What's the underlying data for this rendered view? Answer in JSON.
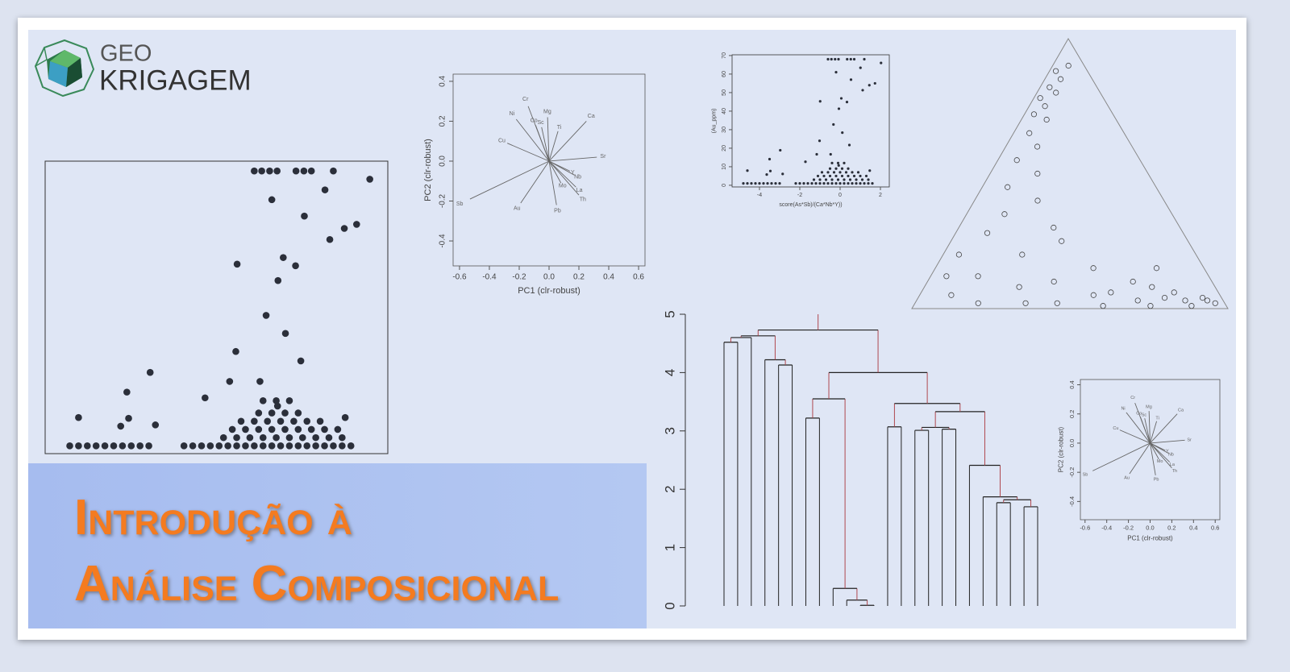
{
  "logo": {
    "line1": "GEO",
    "line2": "KRIGAGEM"
  },
  "title": {
    "line1": "Introdução à",
    "line2": "Análise Composicional"
  },
  "chart_data": [
    {
      "type": "scatter",
      "xlabel": "score(As*Sb)/(Ca*Nb*Y))",
      "ylabel": "(Au_ppm)",
      "color": "#2b2f3a",
      "x": [
        -0.6,
        -0.43,
        -0.25,
        -0.08,
        0.35,
        0.53,
        0.7,
        1.2,
        2.03,
        1.01,
        -0.2,
        0.54,
        1.73,
        1.45,
        1.12,
        -0.99,
        0.06,
        0.34,
        -0.06,
        -0.33,
        -1.02,
        -2.97,
        -3.5,
        0.11,
        0.46,
        -1.16,
        -0.47,
        -1.72,
        1.47,
        -4.6,
        -3.46,
        -2.85,
        -3.64,
        -0.07,
        -4.8,
        -4.6,
        -4.4,
        -4.2,
        -4.0,
        -3.8,
        -3.6,
        -3.4,
        -3.2,
        -3.0,
        -2.2,
        -2.0,
        -1.8,
        -1.6,
        -1.4,
        -1.2,
        -1.0,
        -0.8,
        -0.6,
        -0.4,
        -0.2,
        0,
        0.2,
        0.4,
        0.6,
        0.8,
        1.0,
        1.2,
        1.4,
        1.6,
        -1.3,
        -1.0,
        -0.7,
        -0.4,
        -0.1,
        0.2,
        0.5,
        0.8,
        1.1,
        1.4,
        -1.1,
        -0.8,
        -0.5,
        -0.2,
        0.1,
        0.4,
        0.7,
        1.0,
        1.3,
        -0.9,
        -0.6,
        -0.3,
        0,
        0.3,
        0.6,
        0.9,
        -0.5,
        -0.2,
        0.1,
        0.4,
        -0.4,
        -0.1,
        0.2
      ],
      "values": [
        68,
        68,
        68,
        68,
        68,
        68,
        68,
        68,
        66,
        63.4,
        61,
        57,
        55,
        54,
        51.3,
        45.3,
        46.9,
        44.9,
        41.3,
        32.8,
        24,
        18.9,
        14.1,
        28.4,
        21.7,
        16.7,
        16.7,
        12.7,
        7.9,
        7.9,
        7.7,
        6.1,
        5.8,
        10.7,
        1,
        1,
        1,
        1,
        1,
        1,
        1,
        1,
        1,
        1,
        1,
        1,
        1,
        1,
        1,
        1,
        1,
        1,
        1,
        1,
        1,
        1,
        1,
        1,
        1,
        1,
        1,
        1,
        1,
        1,
        3,
        3,
        3,
        3,
        3,
        3,
        3,
        3,
        3,
        3,
        5,
        5,
        5,
        5,
        5,
        5,
        5,
        5,
        5,
        7,
        7,
        7,
        7,
        7,
        7,
        7,
        9,
        9,
        9,
        9,
        12,
        12,
        12
      ],
      "xlim": [
        -5.36,
        2.44
      ],
      "ylim": [
        -0.9,
        70.4
      ],
      "xticks": [
        -4,
        -2,
        0,
        2
      ],
      "yticks": [
        0,
        10,
        20,
        30,
        40,
        50,
        60,
        70
      ]
    },
    {
      "type": "biplot",
      "xlabel": "PC1 (clr-robust)",
      "ylabel": "PC2 (clr-robust)",
      "color": "#666666",
      "variables": [
        "Ni",
        "Cr",
        "Cu",
        "Co",
        "Sc",
        "Mg",
        "Ti",
        "Ca",
        "Sr",
        "Nb",
        "Y",
        "La",
        "Th",
        "Mo",
        "Pb",
        "Au",
        "Sb"
      ],
      "x": [
        -0.22,
        -0.14,
        -0.28,
        -0.09,
        -0.05,
        -0.01,
        0.06,
        0.25,
        0.32,
        0.17,
        0.14,
        0.18,
        0.2,
        0.08,
        0.05,
        -0.19,
        -0.53
      ],
      "values": [
        0.21,
        0.275,
        0.09,
        0.18,
        0.17,
        0.22,
        0.15,
        0.2,
        0.02,
        -0.07,
        -0.05,
        -0.13,
        -0.17,
        -0.11,
        -0.22,
        -0.21,
        -0.19
      ],
      "xlim": [
        -0.643,
        0.643
      ],
      "ylim": [
        -0.525,
        0.436
      ],
      "xticks": [
        -0.6,
        -0.4,
        -0.2,
        {
          "value": 0,
          "label": "0.0"
        },
        0.2,
        0.4,
        0.6
      ],
      "yticks": [
        -0.4,
        -0.2,
        {
          "value": 0,
          "label": "0.0"
        },
        0.2,
        0.4
      ]
    },
    {
      "type": "ternary",
      "color": "#444444",
      "a": [
        0.9,
        0.88,
        0.85,
        0.82,
        0.8,
        0.78,
        0.75,
        0.72,
        0.7,
        0.65,
        0.6,
        0.55,
        0.5,
        0.45,
        0.4,
        0.35,
        0.3,
        0.28,
        0.25,
        0.2,
        0.2,
        0.15,
        0.12,
        0.1,
        0.1,
        0.08,
        0.06,
        0.05,
        0.05,
        0.04,
        0.03,
        0.03,
        0.02,
        0.02,
        0.02,
        0.01,
        0.01,
        0.01,
        0.15,
        0.08,
        0.04,
        0.03,
        0.06,
        0.02,
        0.12
      ],
      "b": [
        0.05,
        0.1,
        0.1,
        0.15,
        0.14,
        0.2,
        0.2,
        0.25,
        0.22,
        0.3,
        0.3,
        0.39,
        0.35,
        0.47,
        0.4,
        0.53,
        0.4,
        0.62,
        0.4,
        0.75,
        0.55,
        0.35,
        0.73,
        0.5,
        0.25,
        0.62,
        0.14,
        0.85,
        0.4,
        0.06,
        0.27,
        0.12,
        0.78,
        0.53,
        0.03,
        0.24,
        0.11,
        0.39,
        0.15,
        0.2,
        0.18,
        0.05,
        0.34,
        0.63,
        0.83
      ],
      "c": [
        0.05,
        0.02,
        0.05,
        0.03,
        0.06,
        0.02,
        0.05,
        0.03,
        0.08,
        0.05,
        0.1,
        0.06,
        0.15,
        0.08,
        0.2,
        0.12,
        0.3,
        0.1,
        0.35,
        0.05,
        0.25,
        0.5,
        0.15,
        0.4,
        0.65,
        0.3,
        0.8,
        0.1,
        0.55,
        0.9,
        0.7,
        0.85,
        0.2,
        0.45,
        0.95,
        0.75,
        0.88,
        0.6,
        0.7,
        0.72,
        0.78,
        0.92,
        0.6,
        0.35,
        0.05
      ]
    },
    {
      "type": "dendrogram",
      "color": "#222222",
      "branch_color": "#b0484f",
      "merge": [
        [
          -1,
          -2
        ],
        [
          1,
          -3
        ],
        [
          -5,
          -6
        ],
        [
          -4,
          3
        ],
        [
          2,
          4
        ],
        [
          -7,
          -8
        ],
        [
          -11,
          -12
        ],
        [
          -10,
          7
        ],
        [
          -9,
          8
        ],
        [
          6,
          9
        ],
        [
          -13,
          -14
        ],
        [
          -15,
          -16
        ],
        [
          -17,
          -18
        ],
        [
          12,
          13
        ],
        [
          -21,
          -22
        ],
        [
          -23,
          -24
        ],
        [
          15,
          16
        ],
        [
          -20,
          17
        ],
        [
          -19,
          18
        ],
        [
          14,
          19
        ],
        [
          11,
          20
        ],
        [
          10,
          21
        ],
        [
          5,
          22
        ]
      ],
      "height": [
        4.52,
        4.6,
        4.13,
        4.22,
        4.63,
        3.22,
        0.01,
        0.1,
        0.3,
        3.55,
        3.07,
        3.01,
        3.03,
        3.06,
        1.77,
        1.7,
        1.82,
        1.87,
        2.41,
        3.33,
        3.47,
        4.0,
        4.73
      ],
      "ylim": [
        0,
        5
      ],
      "yticks": [
        0,
        1,
        2,
        3,
        4,
        5
      ]
    }
  ]
}
